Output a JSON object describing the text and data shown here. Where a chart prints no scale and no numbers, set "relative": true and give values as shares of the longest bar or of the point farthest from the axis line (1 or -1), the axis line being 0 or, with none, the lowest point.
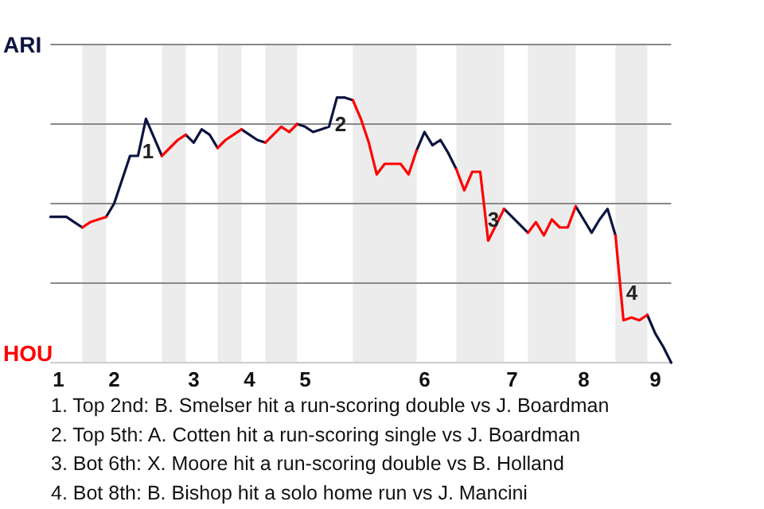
{
  "chart_data": {
    "type": "line",
    "relative": true,
    "categories": [
      null,
      "1",
      null,
      null,
      null,
      null,
      null,
      null,
      "2",
      null,
      null,
      null,
      null,
      null,
      null,
      null,
      null,
      null,
      "3",
      null,
      null,
      null,
      null,
      null,
      null,
      "4",
      null,
      null,
      null,
      null,
      null,
      null,
      "5",
      null,
      null,
      null,
      null,
      null,
      null,
      null,
      null,
      null,
      null,
      null,
      null,
      null,
      null,
      "6",
      null,
      null,
      null,
      null,
      null,
      null,
      null,
      null,
      null,
      null,
      "7",
      null,
      null,
      null,
      null,
      null,
      null,
      null,
      null,
      "8",
      null,
      null,
      null,
      null,
      null,
      null,
      null,
      null,
      "9",
      null,
      null
    ],
    "series": [
      {
        "color": "#0c1440",
        "values": [
          0.55,
          0.55,
          0.55,
          0.53,
          0.51,
          null,
          null,
          0.55,
          0.6,
          0.69,
          0.78,
          0.78,
          0.92,
          0.85,
          0.78,
          null,
          null,
          0.86,
          0.83,
          0.88,
          0.86,
          0.81,
          null,
          null,
          0.88,
          0.86,
          0.84,
          0.83,
          null,
          null,
          null,
          0.9,
          0.89,
          0.87,
          0.88,
          0.89,
          1,
          1,
          0.99,
          null,
          null,
          null,
          null,
          null,
          null,
          null,
          0.8,
          0.87,
          0.82,
          0.84,
          0.79,
          0.73,
          null,
          null,
          null,
          null,
          null,
          0.58,
          0.55,
          0.52,
          0.49,
          null,
          null,
          null,
          null,
          null,
          0.59,
          0.54,
          0.49,
          0.54,
          0.58,
          0.48,
          null,
          null,
          null,
          0.18,
          0.11,
          0.06,
          0
        ]
      },
      {
        "color": "#ff0000",
        "values": [
          null,
          null,
          null,
          null,
          0.51,
          0.53,
          0.54,
          0.55,
          null,
          null,
          null,
          null,
          null,
          null,
          0.78,
          0.81,
          0.84,
          0.86,
          null,
          null,
          null,
          0.81,
          0.84,
          0.86,
          0.88,
          null,
          null,
          0.83,
          0.86,
          0.89,
          0.87,
          0.9,
          null,
          null,
          null,
          null,
          null,
          null,
          0.99,
          0.92,
          0.83,
          0.71,
          0.75,
          0.75,
          0.75,
          0.71,
          0.8,
          null,
          null,
          null,
          null,
          0.73,
          0.65,
          0.72,
          0.72,
          0.46,
          0.52,
          0.58,
          null,
          null,
          0.49,
          0.53,
          0.48,
          0.54,
          0.51,
          0.51,
          0.59,
          null,
          null,
          null,
          null,
          0.48,
          0.16,
          0.17,
          0.16,
          0.18,
          null,
          null,
          null
        ]
      }
    ],
    "grid": "y",
    "annotations": [
      "ARI",
      "HOU",
      "1",
      "2",
      "3",
      "4",
      "1. Top 2nd: B. Smelser hit a run-scoring double vs J. Boardman",
      "2. Top 5th: A. Cotten hit a run-scoring single vs J. Boardman",
      "3. Bot 6th: X. Moore hit a run-scoring double vs B. Holland",
      "4. Bot 8th: B. Bishop hit a solo home run vs J. Mancini"
    ]
  }
}
